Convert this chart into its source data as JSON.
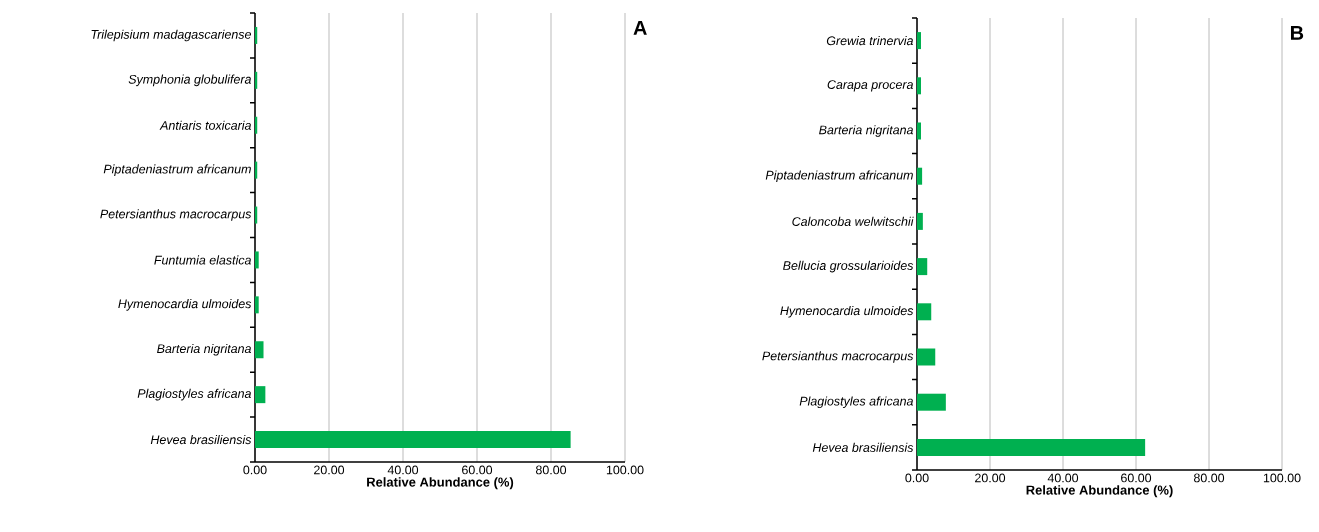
{
  "chart_data": [
    {
      "type": "bar",
      "orientation": "horizontal",
      "categories": [
        "Trilepisium madagascariense",
        "Symphonia globulifera",
        "Antiaris toxicaria",
        "Piptadeniastrum africanum",
        "Petersianthus macrocarpus",
        "Funtumia elastica",
        "Hymenocardia ulmoides",
        "Barteria nigritana",
        "Plagiostyles africana",
        "Hevea brasiliensis"
      ],
      "values": [
        0.6,
        0.6,
        0.6,
        0.6,
        0.6,
        1.0,
        1.0,
        2.3,
        2.8,
        85.3
      ],
      "color": "#00b050",
      "xlim": [
        0,
        100
      ],
      "xticks": [
        {
          "value": 0,
          "label": "0.00"
        },
        {
          "value": 20,
          "label": "20.00"
        },
        {
          "value": 40,
          "label": "40.00"
        },
        {
          "value": 60,
          "label": "60.00"
        },
        {
          "value": 80,
          "label": "80.00"
        },
        {
          "value": 100,
          "label": "100.00"
        }
      ],
      "grid": "x",
      "xlabel": "Relative Abundance (%)",
      "annotations": [
        "A"
      ]
    },
    {
      "type": "bar",
      "orientation": "horizontal",
      "categories": [
        "Grewia trinervia",
        "Carapa procera",
        "Barteria nigritana",
        "Piptadeniastrum africanum",
        "Caloncoba welwitschii",
        "Bellucia grossularioides",
        "Hymenocardia ulmoides",
        "Petersianthus macrocarpus",
        "Plagiostyles africana",
        "Hevea brasiliensis"
      ],
      "values": [
        1.1,
        1.1,
        1.1,
        1.4,
        1.6,
        2.8,
        3.9,
        5.0,
        7.9,
        62.5
      ],
      "color": "#00b050",
      "xlim": [
        0,
        100
      ],
      "xticks": [
        {
          "value": 0,
          "label": "0.00"
        },
        {
          "value": 20,
          "label": "20.00"
        },
        {
          "value": 40,
          "label": "40.00"
        },
        {
          "value": 60,
          "label": "60.00"
        },
        {
          "value": 80,
          "label": "80.00"
        },
        {
          "value": 100,
          "label": "100.00"
        }
      ],
      "grid": "x",
      "xlabel": "Relative Abundance (%)",
      "annotations": [
        "B"
      ]
    }
  ]
}
